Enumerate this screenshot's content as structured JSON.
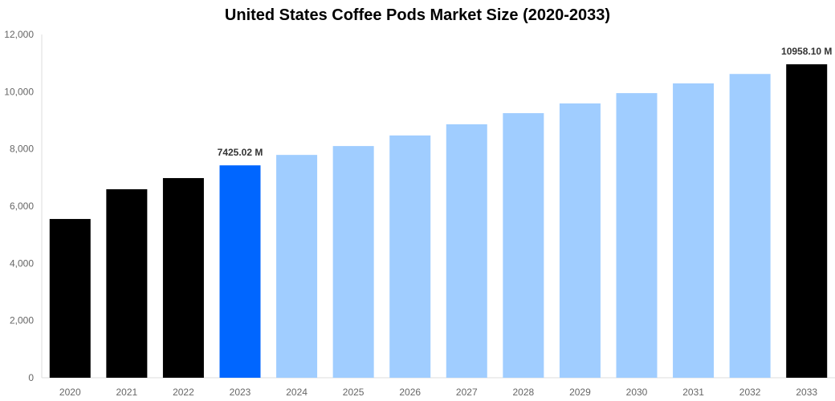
{
  "chart_data": {
    "type": "bar",
    "title": "United States Coffee Pods Market Size (2020-2033)",
    "xlabel": "",
    "ylabel": "",
    "categories": [
      "2020",
      "2021",
      "2022",
      "2023",
      "2024",
      "2025",
      "2026",
      "2027",
      "2028",
      "2029",
      "2030",
      "2031",
      "2032",
      "2033"
    ],
    "values": [
      5550,
      6590,
      6980,
      7425.02,
      7790,
      8100,
      8470,
      8860,
      9250,
      9590,
      9950,
      10290,
      10620,
      10958.1
    ],
    "colors": [
      "#000000",
      "#000000",
      "#000000",
      "#0066ff",
      "#a0cdff",
      "#a0cdff",
      "#a0cdff",
      "#a0cdff",
      "#a0cdff",
      "#a0cdff",
      "#a0cdff",
      "#a0cdff",
      "#a0cdff",
      "#000000"
    ],
    "data_labels": {
      "3": "7425.02 M",
      "13": "10958.10 M"
    },
    "ylim": [
      0,
      12000
    ],
    "yticks": [
      0,
      2000,
      4000,
      6000,
      8000,
      10000,
      12000
    ],
    "ytick_labels": [
      "0",
      "2,000",
      "4,000",
      "6,000",
      "8,000",
      "10,000",
      "12,000"
    ],
    "grid": false,
    "legend": "none"
  }
}
